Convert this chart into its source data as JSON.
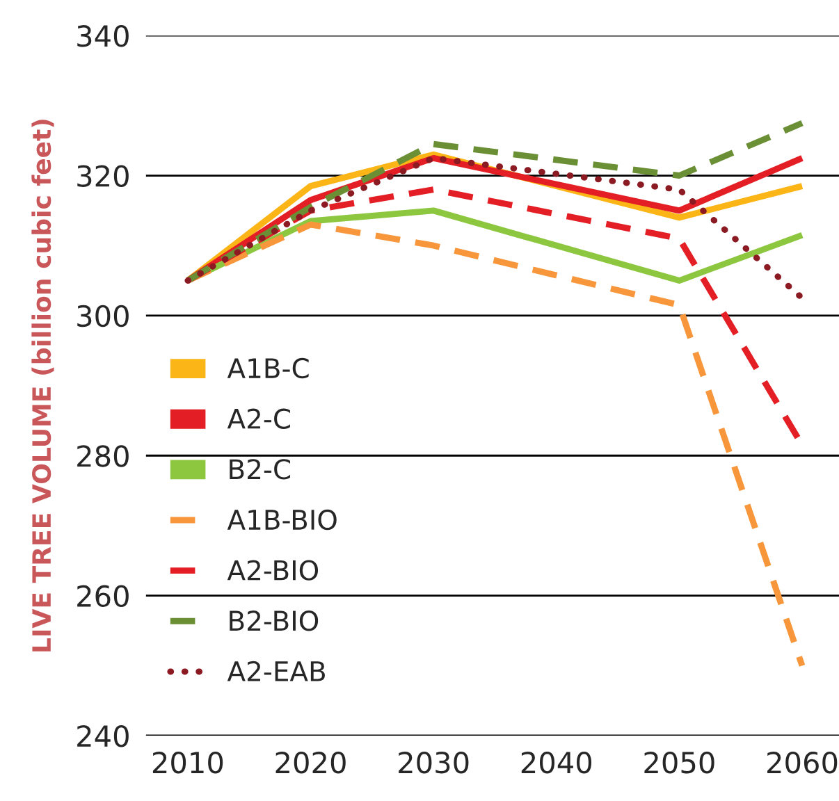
{
  "chart_data": {
    "type": "line",
    "ylabel": "LIVE TREE VOLUME (billion cubic feet)",
    "x": [
      2010,
      2020,
      2030,
      2050,
      2060
    ],
    "xlim": [
      2006.6,
      2063
    ],
    "xticks": [
      2010,
      2020,
      2030,
      2040,
      2050,
      2060
    ],
    "ylim": [
      240,
      340
    ],
    "yticks": [
      240,
      260,
      280,
      300,
      320,
      340
    ],
    "grid": "y",
    "legend": "left",
    "marker": "none",
    "series": [
      {
        "name": "A1B-C",
        "color": "#fbb516",
        "line_style": "solid",
        "values": [
          305,
          318.5,
          323,
          314,
          318.5
        ]
      },
      {
        "name": "A2-C",
        "color": "#e31e24",
        "line_style": "solid",
        "values": [
          305,
          316.5,
          322.5,
          315,
          322.5
        ]
      },
      {
        "name": "B2-C",
        "color": "#8dc63f",
        "line_style": "solid",
        "values": [
          305,
          313.5,
          315,
          305,
          311.5
        ]
      },
      {
        "name": "A1B-BIO",
        "color": "#f7963a",
        "line_style": "dashed",
        "values": [
          305,
          313,
          310,
          301.5,
          250
        ]
      },
      {
        "name": "A2-BIO",
        "color": "#e31e24",
        "line_style": "dashed",
        "values": [
          305,
          315,
          318,
          311,
          281.5
        ]
      },
      {
        "name": "B2-BIO",
        "color": "#6a8f35",
        "line_style": "dashed",
        "values": [
          305,
          315.5,
          324.5,
          320,
          327.5
        ]
      },
      {
        "name": "A2-EAB",
        "color": "#8b1a23",
        "line_style": "dotted",
        "values": [
          305,
          315,
          322.5,
          318,
          302.5
        ]
      }
    ]
  }
}
